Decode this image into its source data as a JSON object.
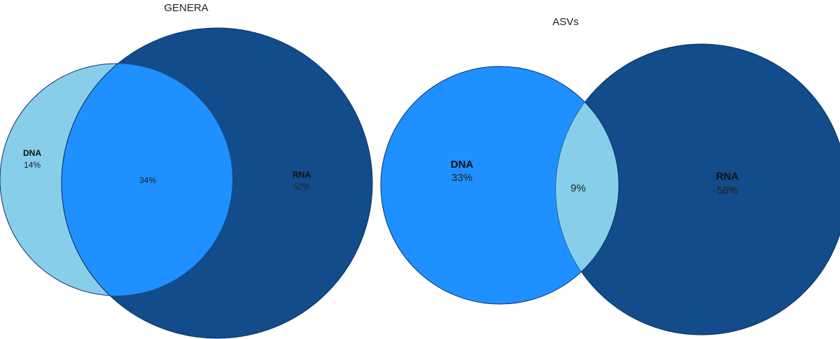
{
  "diagrams": [
    {
      "title": "GENERA",
      "sets": [
        {
          "name": "DNA",
          "value": "14%"
        },
        {
          "name": "RNA",
          "value": "52%"
        }
      ],
      "overlap": "34%",
      "colors": {
        "left_only": "#87ceeb",
        "right_only": "#124c8a",
        "overlap": "#1e90ff"
      }
    },
    {
      "title": "ASVs",
      "sets": [
        {
          "name": "DNA",
          "value": "33%"
        },
        {
          "name": "RNA",
          "value": "58%"
        }
      ],
      "overlap": "9%",
      "colors": {
        "left_only": "#1e90ff",
        "right_only": "#124c8a",
        "overlap": "#87ceeb"
      }
    }
  ]
}
